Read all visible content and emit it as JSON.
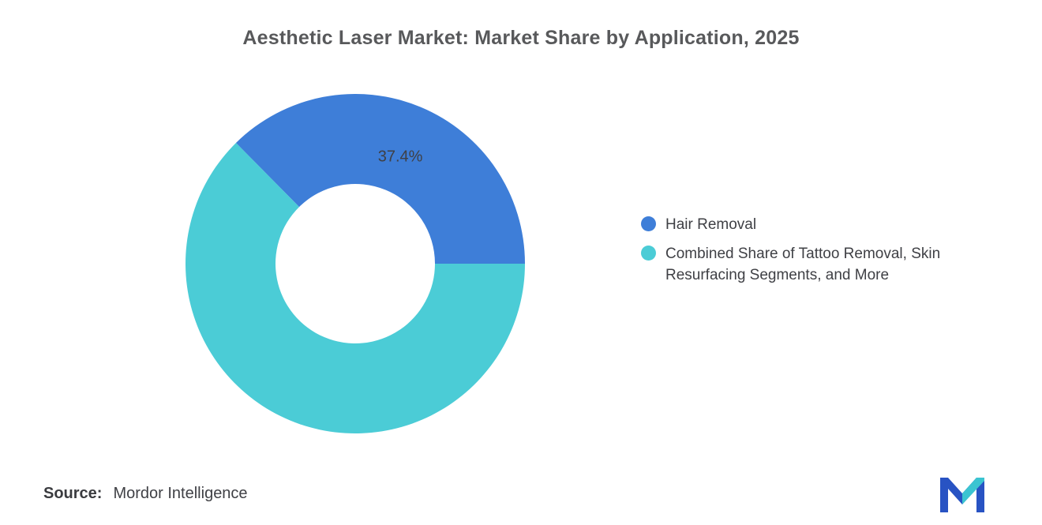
{
  "title": "Aesthetic Laser Market: Market Share by Application, 2025",
  "source": {
    "label": "Source:",
    "value": "Mordor Intelligence"
  },
  "logo": {
    "blue": "#2853C3",
    "teal": "#3BC4D1"
  },
  "chart_data": {
    "type": "pie",
    "donut": true,
    "title": "Aesthetic Laser Market: Market Share by Application, 2025",
    "start_angle_deg": -44.64,
    "inner_radius_ratio": 0.47,
    "legend_position": "right",
    "slices": [
      {
        "label": "Hair Removal",
        "value": 37.4,
        "data_label": "37.4%",
        "color": "#3e7ed8"
      },
      {
        "label": "Combined Share of Tattoo Removal, Skin Resurfacing Segments, and More",
        "value": 62.6,
        "data_label": "",
        "color": "#4bccd6"
      }
    ],
    "data_label_color": "#3f4045"
  }
}
